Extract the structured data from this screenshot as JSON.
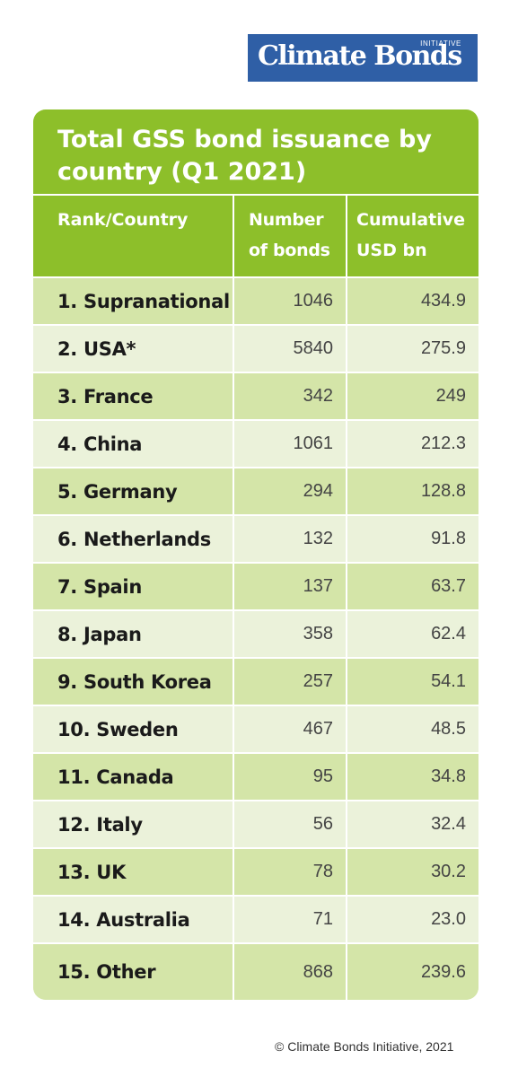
{
  "logo": {
    "main": "Climate Bonds",
    "small": "INITIATIVE"
  },
  "chart_data": {
    "type": "table",
    "title": "Total GSS bond issuance by country (Q1 2021)",
    "columns": [
      "Rank/Country",
      "Number of bonds",
      "Cumulative USD bn"
    ],
    "rows": [
      {
        "country": "1. Supranational",
        "bonds": "1046",
        "usd": "434.9"
      },
      {
        "country": "2. USA*",
        "bonds": "5840",
        "usd": "275.9"
      },
      {
        "country": "3. France",
        "bonds": "342",
        "usd": "249"
      },
      {
        "country": "4. China",
        "bonds": "1061",
        "usd": "212.3"
      },
      {
        "country": "5. Germany",
        "bonds": "294",
        "usd": "128.8"
      },
      {
        "country": "6. Netherlands",
        "bonds": "132",
        "usd": "91.8"
      },
      {
        "country": "7. Spain",
        "bonds": "137",
        "usd": "63.7"
      },
      {
        "country": "8. Japan",
        "bonds": "358",
        "usd": "62.4"
      },
      {
        "country": "9. South Korea",
        "bonds": "257",
        "usd": "54.1"
      },
      {
        "country": "10. Sweden",
        "bonds": "467",
        "usd": "48.5"
      },
      {
        "country": "11. Canada",
        "bonds": "95",
        "usd": "34.8"
      },
      {
        "country": "12. Italy",
        "bonds": "56",
        "usd": "32.4"
      },
      {
        "country": "13. UK",
        "bonds": "78",
        "usd": "30.2"
      },
      {
        "country": "14. Australia",
        "bonds": "71",
        "usd": "23.0"
      },
      {
        "country": "15. Other",
        "bonds": "868",
        "usd": "239.6"
      }
    ]
  },
  "header": {
    "col1": "Rank/Country",
    "col2_line1": "Number",
    "col2_line2": "of bonds",
    "col3_line1": "Cumulative",
    "col3_line2": "USD bn"
  },
  "footer": {
    "text": "© Climate Bonds Initiative, 2021"
  },
  "colors": {
    "brand_blue": "#2f5fa6",
    "header_green": "#8dbf2a",
    "row_dark": "#d4e5a8",
    "row_light": "#ebf2da"
  }
}
